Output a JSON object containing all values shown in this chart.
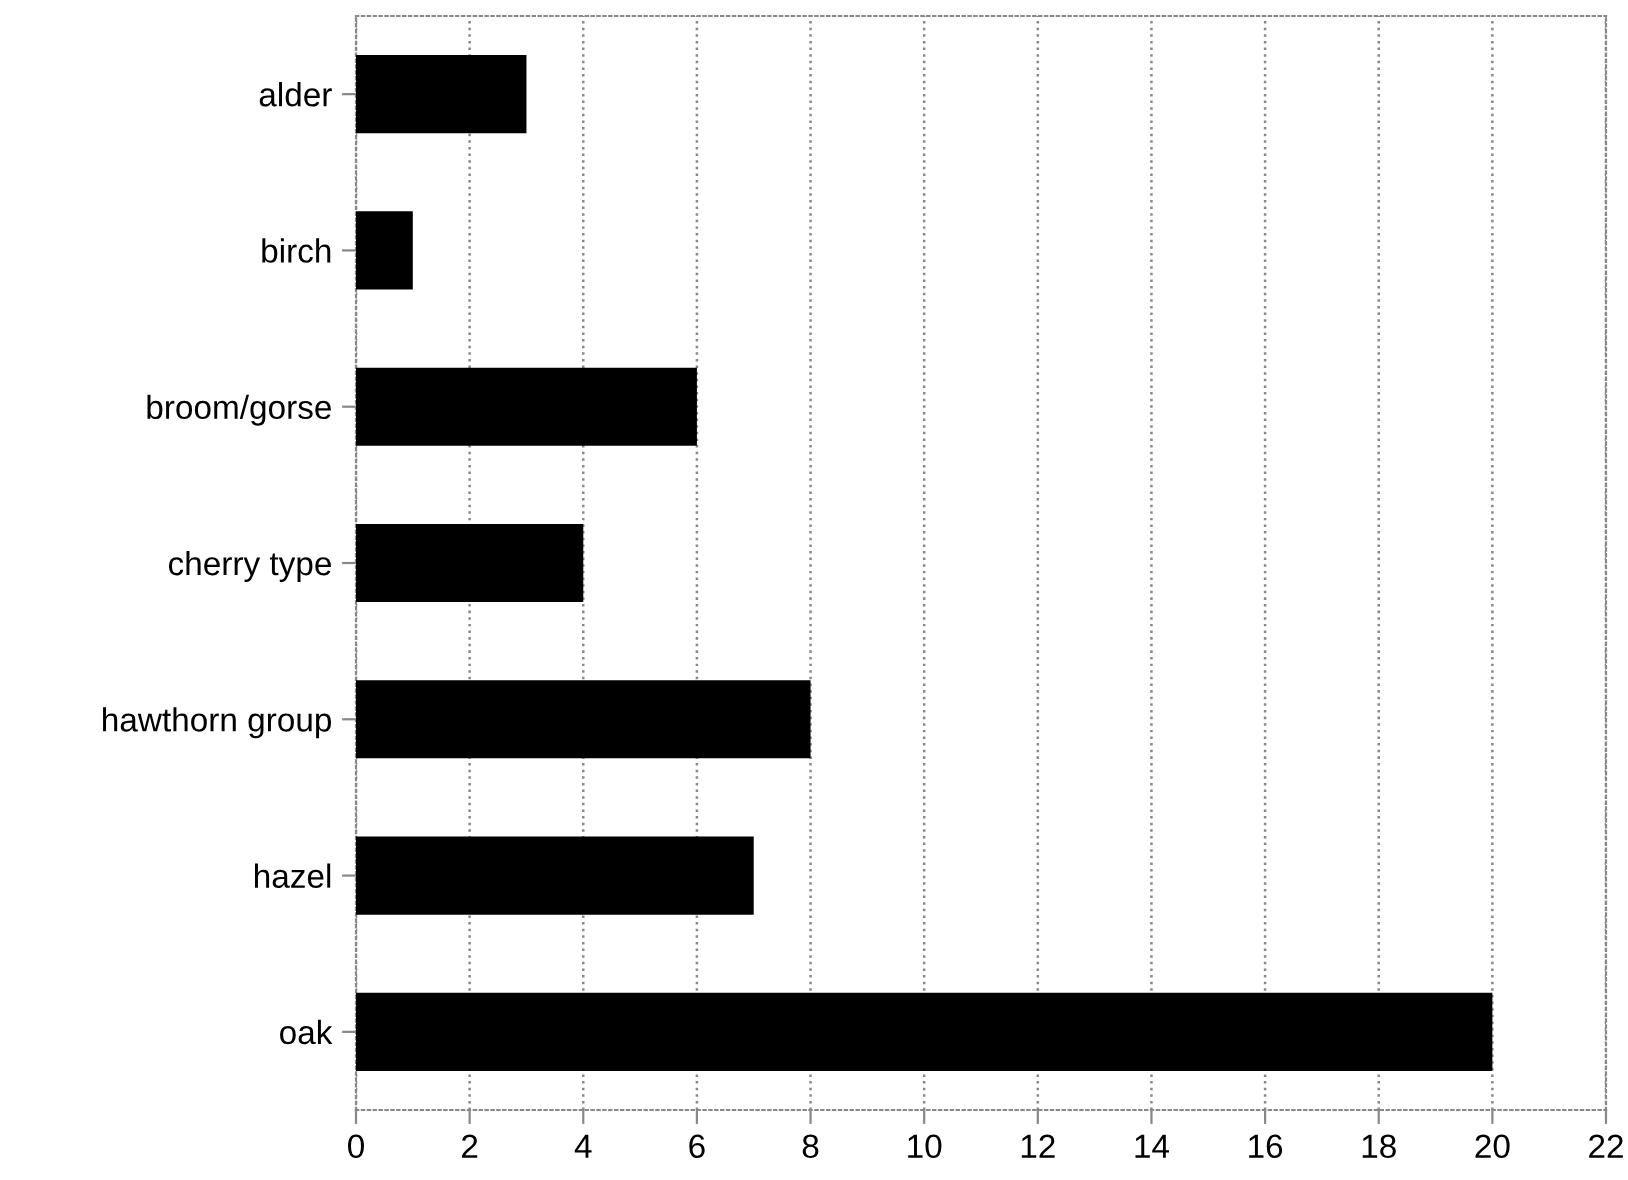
{
  "chart_data": {
    "type": "bar",
    "orientation": "horizontal",
    "categories": [
      "alder",
      "birch",
      "broom/gorse",
      "cherry type",
      "hawthorn group",
      "hazel",
      "oak"
    ],
    "values": [
      3,
      1,
      6,
      4,
      8,
      7,
      20
    ],
    "color": "#000000",
    "xlim": [
      0,
      22
    ],
    "xticks": [
      0,
      2,
      4,
      6,
      8,
      10,
      12,
      14,
      16,
      18,
      20,
      22
    ],
    "grid": "x"
  }
}
